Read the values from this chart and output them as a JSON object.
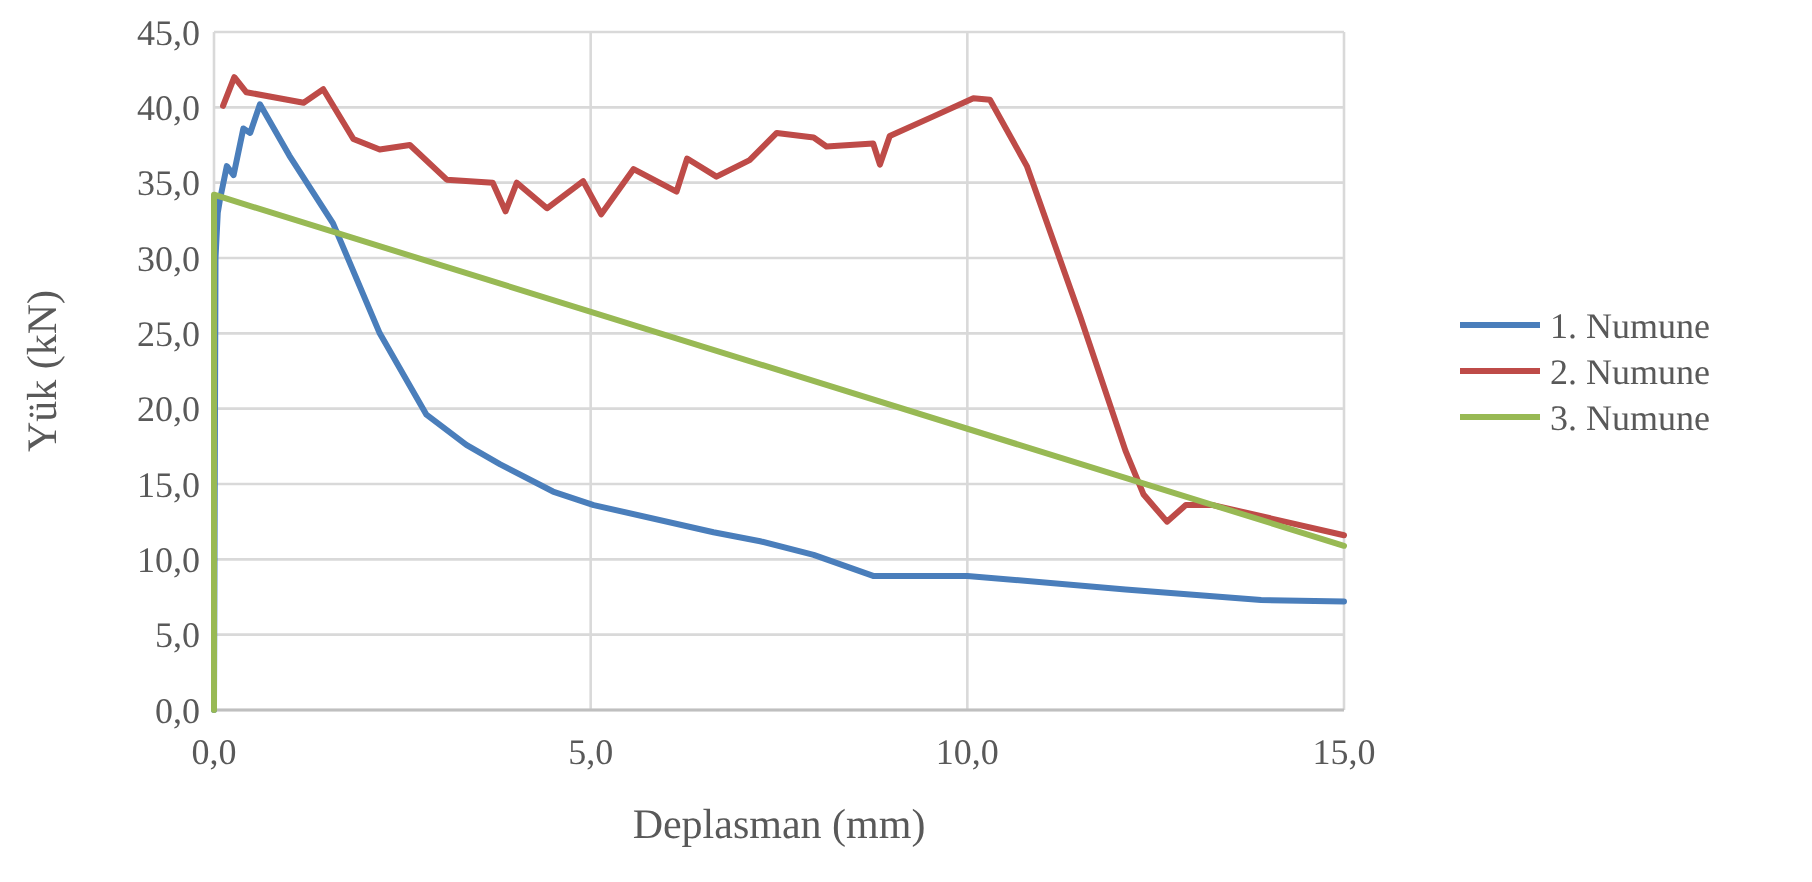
{
  "chart_data": {
    "type": "line",
    "xlabel": "Deplasman (mm)",
    "ylabel": "Yük (kN)",
    "xlim": [
      0,
      15
    ],
    "ylim": [
      0,
      45
    ],
    "xticks": [
      {
        "value": 0,
        "label": "0,0"
      },
      {
        "value": 5,
        "label": "5,0"
      },
      {
        "value": 10,
        "label": "10,0"
      },
      {
        "value": 15,
        "label": "15,0"
      }
    ],
    "yticks": [
      {
        "value": 0,
        "label": "0,0"
      },
      {
        "value": 5,
        "label": "5,0"
      },
      {
        "value": 10,
        "label": "10,0"
      },
      {
        "value": 15,
        "label": "15,0"
      },
      {
        "value": 20,
        "label": "20,0"
      },
      {
        "value": 25,
        "label": "25,0"
      },
      {
        "value": 30,
        "label": "30,0"
      },
      {
        "value": 35,
        "label": "35,0"
      },
      {
        "value": 40,
        "label": "40,0"
      },
      {
        "value": 45,
        "label": "45,0"
      }
    ],
    "grid": true,
    "legend": "right",
    "marker": "none",
    "line_style": "solid",
    "series": [
      {
        "name": "1. Numune",
        "color": "#4a7ebb",
        "x": [
          0,
          0.02,
          0.05,
          0.08,
          0.17,
          0.26,
          0.39,
          0.48,
          0.61,
          1.0,
          1.58,
          2.2,
          2.82,
          3.35,
          3.8,
          4.5,
          5.04,
          6.63,
          7.25,
          7.96,
          8.75,
          10.0,
          12.1,
          13.9,
          15
        ],
        "values": [
          0,
          30,
          33,
          33.9,
          36.1,
          35.5,
          38.6,
          38.3,
          40.2,
          36.8,
          32.3,
          25,
          19.6,
          17.6,
          16.3,
          14.5,
          13.6,
          11.8,
          11.2,
          10.3,
          8.9,
          8.9,
          8.0,
          7.3,
          7.2
        ]
      },
      {
        "name": "2. Numune",
        "color": "#be4b48",
        "x": [
          0.12,
          0.27,
          0.43,
          1.19,
          1.45,
          1.85,
          2.2,
          2.6,
          3.09,
          3.7,
          3.87,
          4.02,
          4.42,
          4.9,
          5.14,
          5.57,
          6.14,
          6.28,
          6.67,
          7.11,
          7.47,
          7.96,
          8.13,
          8.75,
          8.84,
          8.97,
          9.55,
          10.08,
          10.3,
          10.79,
          11.5,
          12.1,
          12.34,
          12.65,
          12.9,
          13.26,
          15
        ],
        "values": [
          40.1,
          42,
          41,
          40.3,
          41.2,
          37.9,
          37.2,
          37.5,
          35.2,
          35.0,
          33.1,
          35.0,
          33.3,
          35.1,
          32.9,
          35.9,
          34.4,
          36.6,
          35.4,
          36.5,
          38.3,
          38.0,
          37.4,
          37.6,
          36.2,
          38.1,
          39.4,
          40.6,
          40.5,
          36.1,
          26.1,
          17.2,
          14.3,
          12.5,
          13.6,
          13.6,
          11.6
        ]
      },
      {
        "name": "3. Numune",
        "color": "#98b954",
        "x": [
          0,
          0,
          15
        ],
        "values": [
          0,
          34.2,
          10.9
        ]
      }
    ]
  }
}
